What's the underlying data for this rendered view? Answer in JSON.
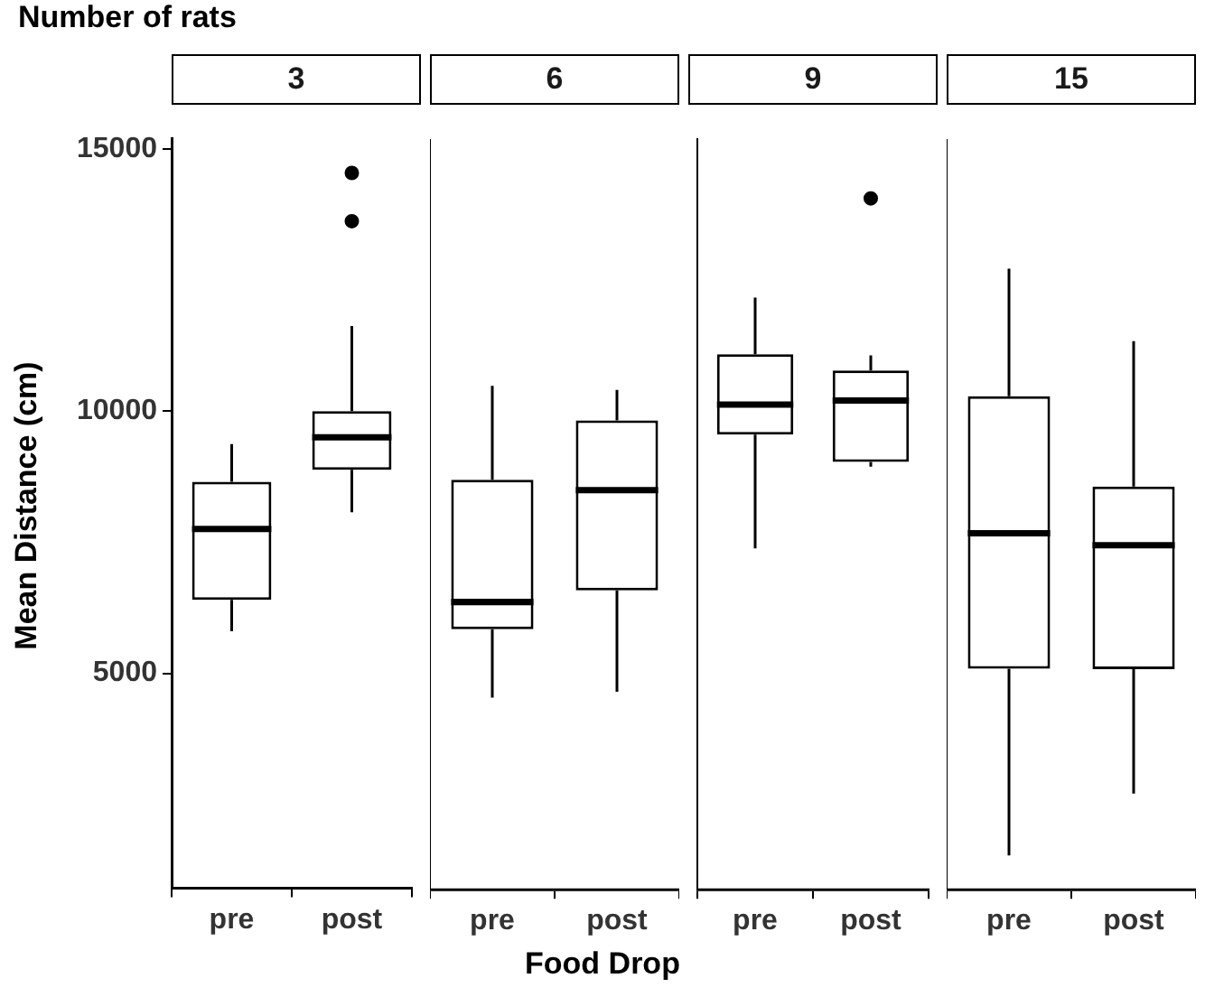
{
  "chart_data": [
    {
      "type": "box",
      "title": "3",
      "xlabel": "Food Drop",
      "ylabel": "Mean Distance (cm)",
      "annotations": [
        "Number of rats"
      ],
      "categories": [
        "pre",
        "post"
      ],
      "boxes": [
        {
          "low": 5800,
          "q1": 6400,
          "median": 7750,
          "q3": 8650,
          "high": 9370
        },
        {
          "low": 8070,
          "q1": 8880,
          "median": 9500,
          "q3": 10000,
          "high": 11620,
          "outliers": [
            13620,
            14540
          ]
        }
      ],
      "ylim": [
        900,
        15200
      ],
      "yticks": [
        5000,
        10000,
        15000
      ],
      "grid": false
    },
    {
      "type": "box",
      "title": "6",
      "categories": [
        "pre",
        "post"
      ],
      "boxes": [
        {
          "low": 4560,
          "q1": 5860,
          "median": 6380,
          "q3": 8710,
          "high": 10500
        },
        {
          "low": 4670,
          "q1": 6600,
          "median": 8510,
          "q3": 9840,
          "high": 10420
        }
      ],
      "ylim": [
        900,
        15200
      ],
      "yticks": [
        5000,
        10000,
        15000
      ],
      "tick_labels": "x",
      "grid": false
    },
    {
      "type": "box",
      "title": "9",
      "categories": [
        "pre",
        "post"
      ],
      "boxes": [
        {
          "low": 7400,
          "q1": 9570,
          "median": 10140,
          "q3": 11100,
          "high": 12180
        },
        {
          "low": 8960,
          "q1": 9050,
          "median": 10220,
          "q3": 10790,
          "high": 11080,
          "outliers": [
            14070
          ]
        }
      ],
      "ylim": [
        900,
        15200
      ],
      "yticks": [
        5000,
        10000,
        15000
      ],
      "tick_labels": "x",
      "grid": false
    },
    {
      "type": "box",
      "title": "15",
      "categories": [
        "pre",
        "post"
      ],
      "boxes": [
        {
          "low": 1550,
          "q1": 5110,
          "median": 7690,
          "q3": 10300,
          "high": 12730
        },
        {
          "low": 2730,
          "q1": 5100,
          "median": 7460,
          "q3": 8580,
          "high": 11350
        }
      ],
      "ylim": [
        900,
        15200
      ],
      "yticks": [
        5000,
        10000,
        15000
      ],
      "tick_labels": "x",
      "grid": false
    }
  ]
}
